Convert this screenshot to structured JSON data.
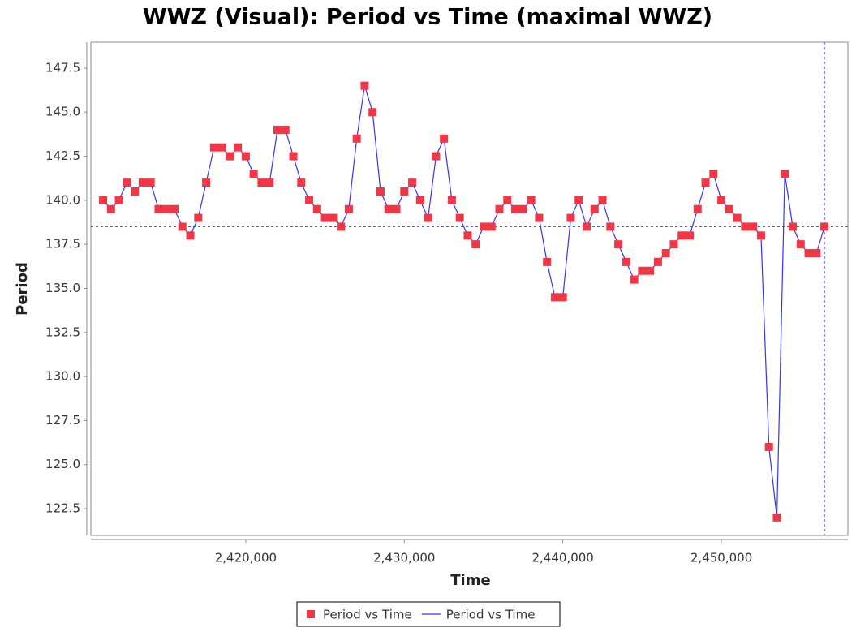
{
  "chart_data": {
    "type": "line",
    "title": "WWZ (Visual): Period vs Time (maximal WWZ)",
    "xlabel": "Time",
    "ylabel": "Period",
    "x": [
      2411000,
      2411500,
      2412000,
      2412500,
      2413000,
      2413500,
      2414000,
      2414500,
      2415000,
      2415500,
      2416000,
      2416500,
      2417000,
      2417500,
      2418000,
      2418500,
      2419000,
      2419500,
      2420000,
      2420500,
      2421000,
      2421500,
      2422000,
      2422500,
      2423000,
      2423500,
      2424000,
      2424500,
      2425000,
      2425500,
      2426000,
      2426500,
      2427000,
      2427500,
      2428000,
      2428500,
      2429000,
      2429500,
      2430000,
      2430500,
      2431000,
      2431500,
      2432000,
      2432500,
      2433000,
      2433500,
      2434000,
      2434500,
      2435000,
      2435500,
      2436000,
      2436500,
      2437000,
      2437500,
      2438000,
      2438500,
      2439000,
      2439500,
      2440000,
      2440500,
      2441000,
      2441500,
      2442000,
      2442500,
      2443000,
      2443500,
      2444000,
      2444500,
      2445000,
      2445500,
      2446000,
      2446500,
      2447000,
      2447500,
      2448000,
      2448500,
      2449000,
      2449500,
      2450000,
      2450500,
      2451000,
      2451500,
      2452000,
      2452500,
      2453000,
      2453500,
      2454000,
      2454500,
      2455000,
      2455500,
      2456000,
      2456500
    ],
    "series": [
      {
        "name": "Period vs Time",
        "marker_color": "#f23645",
        "line_color": "#3333ff",
        "values": [
          140,
          139.5,
          140,
          141,
          140.5,
          141,
          141,
          139.5,
          139.5,
          139.5,
          138.5,
          138,
          139,
          141,
          143,
          143,
          142.5,
          143,
          142.5,
          141.5,
          141,
          141,
          144,
          144,
          142.5,
          141,
          140,
          139.5,
          139,
          139,
          138.5,
          139.5,
          143.5,
          146.5,
          145,
          140.5,
          139.5,
          139.5,
          140.5,
          141,
          140,
          139,
          142.5,
          143.5,
          140,
          139,
          138,
          137.5,
          138.5,
          138.5,
          139.5,
          140,
          139.5,
          139.5,
          140,
          139,
          136.5,
          134.5,
          134.5,
          139,
          140,
          138.5,
          139.5,
          140,
          138.5,
          137.5,
          136.5,
          135.5,
          136,
          136,
          136.5,
          137,
          137.5,
          138,
          138,
          139.5,
          141,
          141.5,
          140,
          139.5,
          139,
          138.5,
          138.5,
          138,
          126,
          122,
          141.5,
          138.5,
          137.5,
          137,
          137,
          138.5
        ]
      }
    ],
    "legend": [
      {
        "label": "Period vs Time",
        "symbol": "square",
        "color": "#f23645"
      },
      {
        "label": "Period vs Time",
        "symbol": "line",
        "color": "#3333ff"
      }
    ],
    "crosshair": {
      "x": 2456500,
      "y": 138.5,
      "color": "#3333ff"
    },
    "xlim": [
      2410230,
      2457980
    ],
    "xticks": [
      {
        "value": 2420000,
        "label": "2,420,000"
      },
      {
        "value": 2430000,
        "label": "2,430,000"
      },
      {
        "value": 2440000,
        "label": "2,440,000"
      },
      {
        "value": 2450000,
        "label": "2,450,000"
      }
    ],
    "ylim": [
      120.98,
      148.97
    ],
    "yticks": [
      122.5,
      {
        "value": 125,
        "label": "125.0"
      },
      127.5,
      {
        "value": 130,
        "label": "130.0"
      },
      132.5,
      {
        "value": 135,
        "label": "135.0"
      },
      137.5,
      {
        "value": 140,
        "label": "140.0"
      },
      142.5,
      {
        "value": 145,
        "label": "145.0"
      },
      147.5
    ],
    "grid": false
  }
}
